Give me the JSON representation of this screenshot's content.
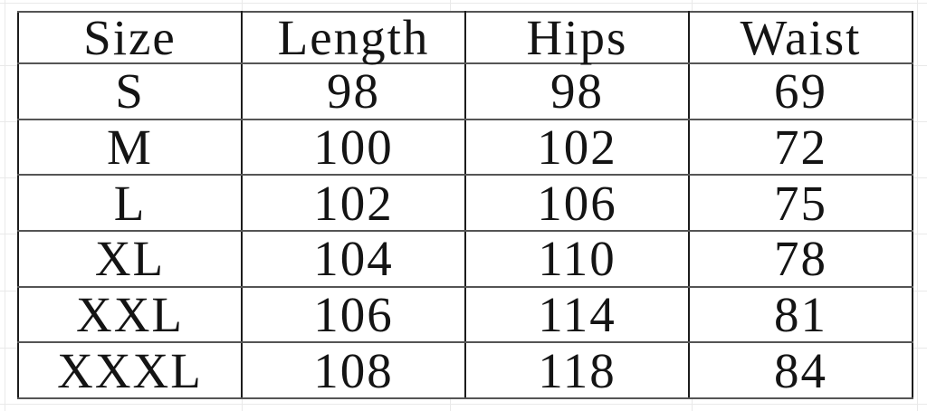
{
  "colors": {
    "background": "#ffffff",
    "table_outer_border": "#1f1f1f",
    "table_vertical_border": "#1c1c1c",
    "table_horizontal_border": "#555555",
    "text": "#141414",
    "spreadsheet_gridline": "#e9e9e9"
  },
  "chart_data": {
    "type": "table",
    "columns": [
      "Size",
      "Length",
      "Hips",
      "Waist"
    ],
    "rows": [
      [
        "S",
        98,
        98,
        69
      ],
      [
        "M",
        100,
        102,
        72
      ],
      [
        "L",
        102,
        106,
        75
      ],
      [
        "XL",
        104,
        110,
        78
      ],
      [
        "XXL",
        106,
        114,
        81
      ],
      [
        "XXXL",
        108,
        118,
        84
      ]
    ],
    "layout_hints": {
      "grid": "faint spreadsheet gridlines behind table",
      "header_row": true,
      "alignment": "center"
    }
  }
}
